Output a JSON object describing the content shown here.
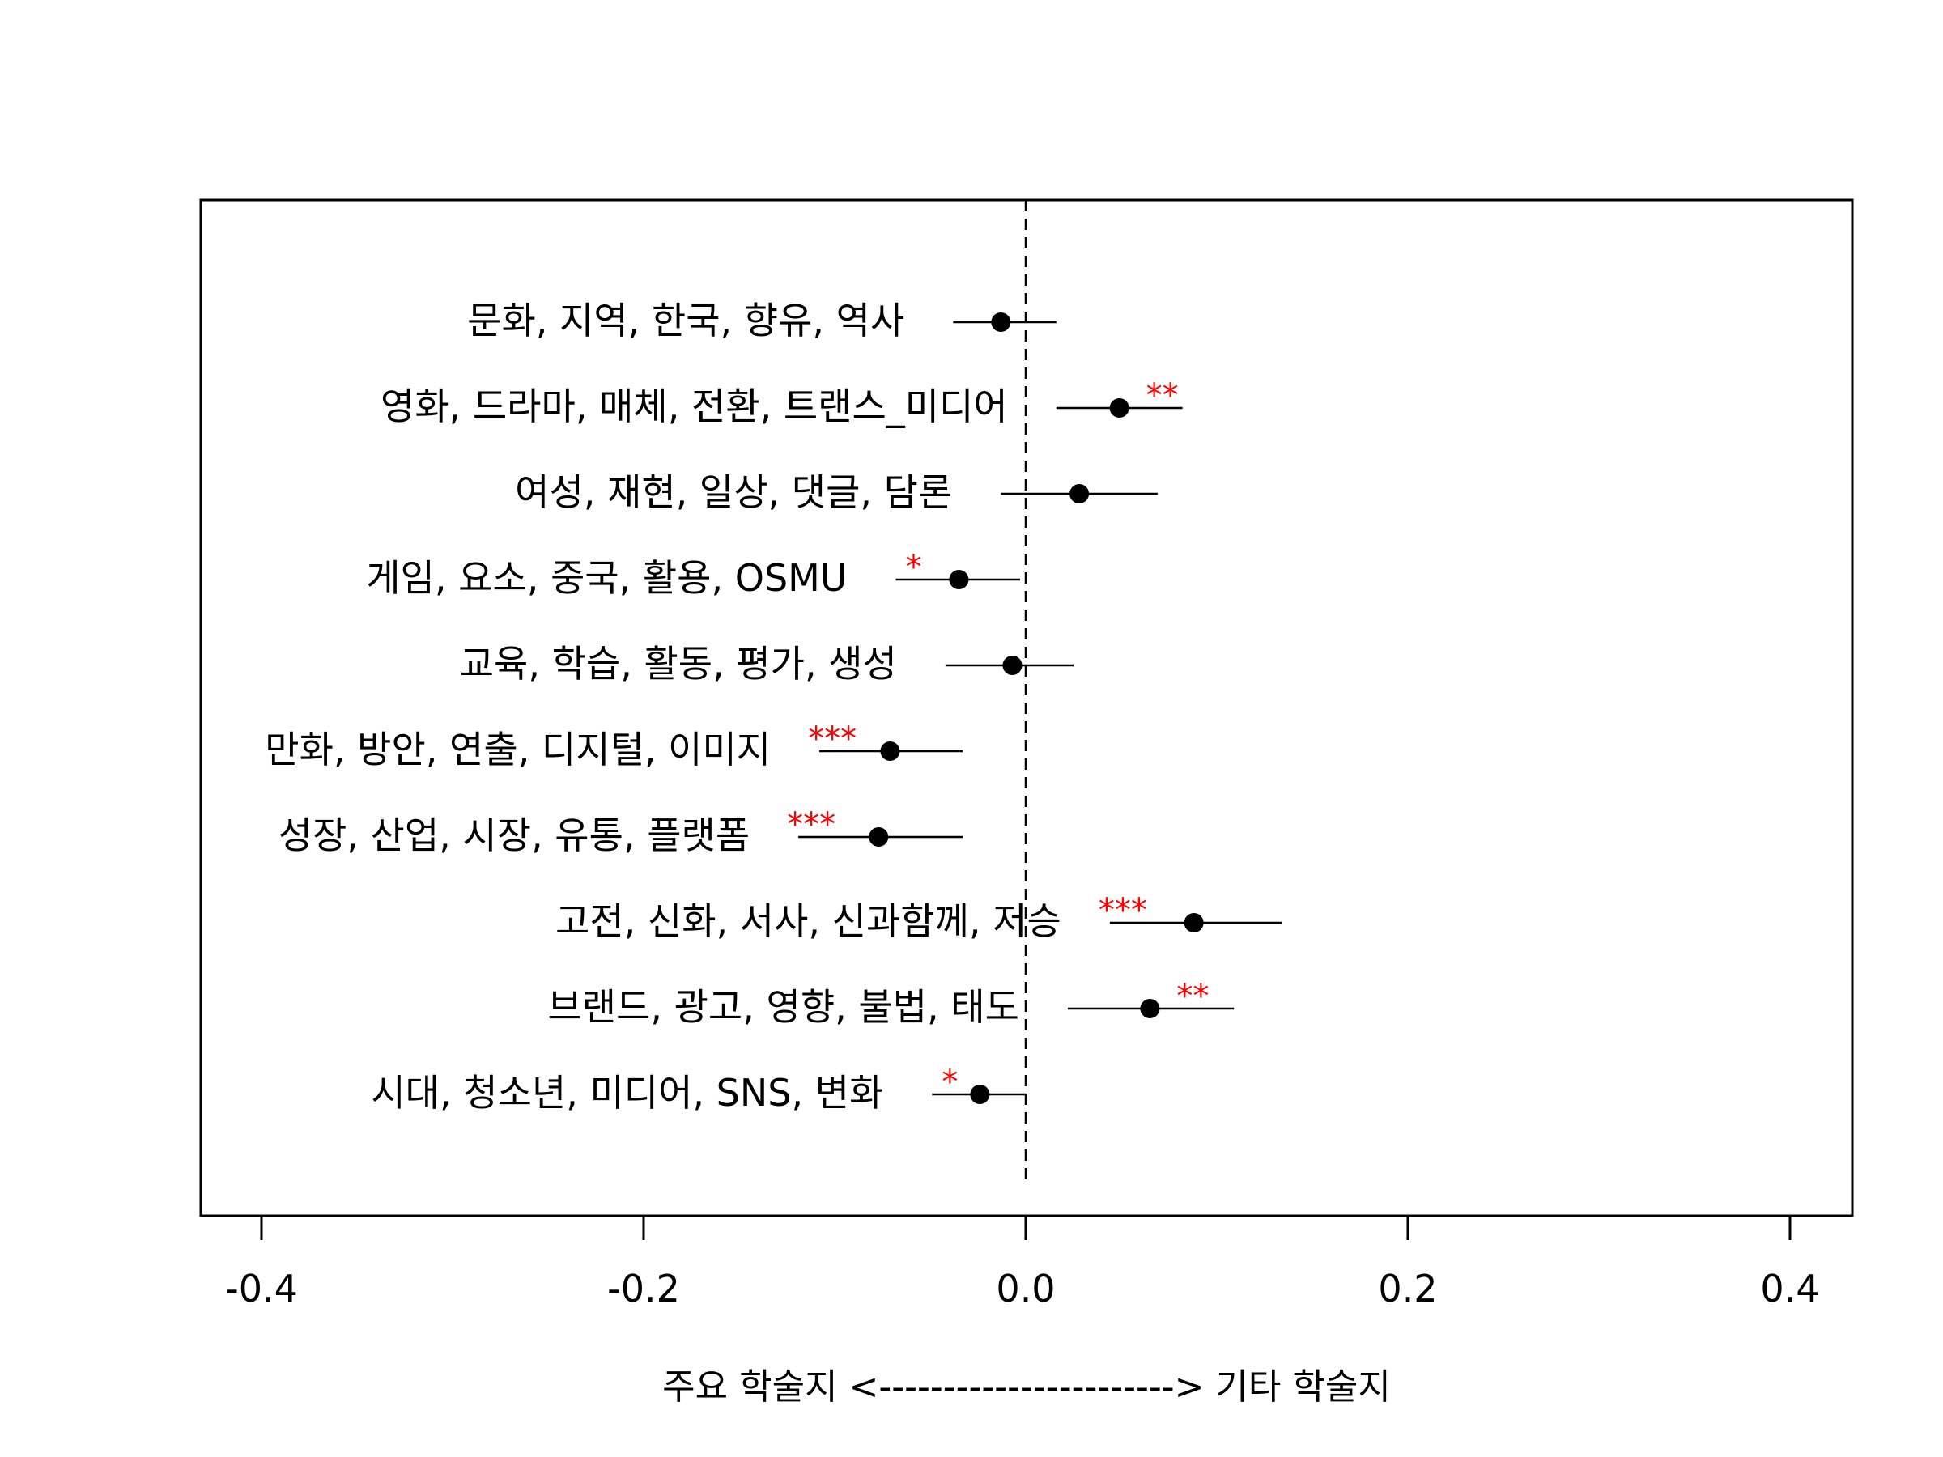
{
  "chart_data": {
    "type": "scatter",
    "subtype": "coefficient-plot-with-intervals",
    "xlim": [
      -0.42,
      0.42
    ],
    "x_ticks": [
      -0.4,
      -0.2,
      0.0,
      0.2,
      0.4
    ],
    "x_tick_labels": [
      "-0.4",
      "-0.2",
      "0.0",
      "0.2",
      "0.4"
    ],
    "xlabel": "주요 학술지 <-----------------------> 기타 학술지",
    "reference_line_x": 0.0,
    "grid": false,
    "point_color": "#000000",
    "interval_color": "#000000",
    "significance_color": "#ff0000",
    "rows": [
      {
        "label": "문화, 지역, 한국, 향유, 역사",
        "estimate": -0.013,
        "lower": -0.038,
        "upper": 0.016,
        "sig": ""
      },
      {
        "label": "영화, 드라마, 매체, 전환, 트랜스_미디어",
        "estimate": 0.049,
        "lower": 0.016,
        "upper": 0.082,
        "sig": "**"
      },
      {
        "label": "여성, 재현, 일상, 댓글, 담론",
        "estimate": 0.028,
        "lower": -0.013,
        "upper": 0.069,
        "sig": ""
      },
      {
        "label": "게임, 요소, 중국, 활용, OSMU",
        "estimate": -0.035,
        "lower": -0.068,
        "upper": -0.003,
        "sig": "*"
      },
      {
        "label": "교육, 학습, 활동, 평가, 생성",
        "estimate": -0.007,
        "lower": -0.042,
        "upper": 0.025,
        "sig": ""
      },
      {
        "label": "만화, 방안, 연출, 디지털, 이미지",
        "estimate": -0.071,
        "lower": -0.108,
        "upper": -0.033,
        "sig": "***"
      },
      {
        "label": "성장, 산업, 시장, 유통, 플랫폼",
        "estimate": -0.077,
        "lower": -0.119,
        "upper": -0.033,
        "sig": "***"
      },
      {
        "label": "고전, 신화, 서사, 신과함께, 저승",
        "estimate": 0.088,
        "lower": 0.044,
        "upper": 0.134,
        "sig": "***"
      },
      {
        "label": "브랜드, 광고, 영향, 불법, 태도",
        "estimate": 0.065,
        "lower": 0.022,
        "upper": 0.109,
        "sig": "**"
      },
      {
        "label": "시대, 청소년, 미디어, SNS, 변화",
        "estimate": -0.024,
        "lower": -0.049,
        "upper": 0.0,
        "sig": "*"
      }
    ]
  }
}
